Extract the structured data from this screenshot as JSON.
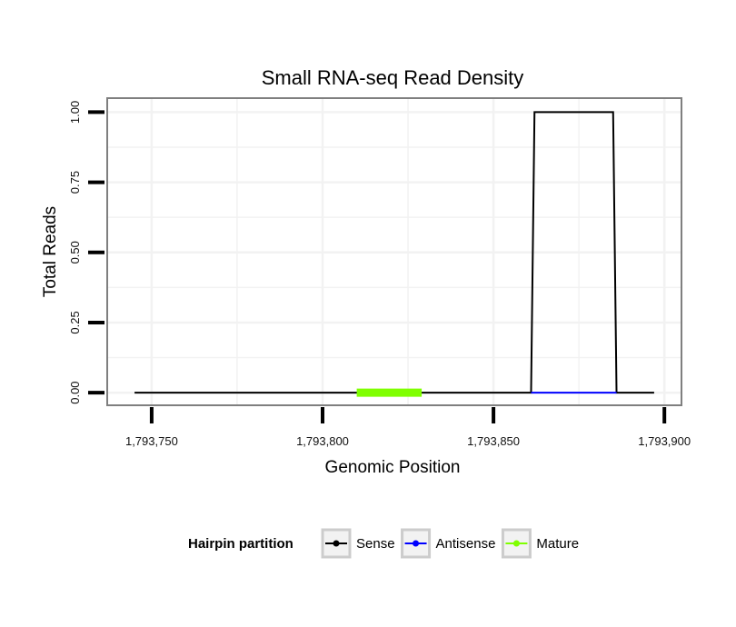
{
  "chart_data": {
    "type": "line",
    "title": "Small RNA-seq Read Density",
    "xlabel": "Genomic Position",
    "ylabel": "Total Reads",
    "xlim": [
      1793737,
      1793905
    ],
    "ylim": [
      -0.045,
      1.05
    ],
    "x_ticks": [
      1793750,
      1793800,
      1793850,
      1793900
    ],
    "x_tick_labels": [
      "1,793,750",
      "1,793,800",
      "1,793,850",
      "1,793,900"
    ],
    "y_ticks": [
      0,
      0.25,
      0.5,
      0.75,
      1.0
    ],
    "y_tick_labels": [
      "0.00",
      "0.25",
      "0.50",
      "0.75",
      "1.00"
    ],
    "grid": true,
    "legend": {
      "title": "Hairpin partition",
      "position": "bottom",
      "entries": [
        {
          "name": "Sense",
          "color": "#000000"
        },
        {
          "name": "Antisense",
          "color": "#0000ff"
        },
        {
          "name": "Mature",
          "color": "#7fff00"
        }
      ]
    },
    "series": [
      {
        "name": "Sense",
        "color": "#000000",
        "x": [
          1793745,
          1793861,
          1793862,
          1793885,
          1793886,
          1793897
        ],
        "y": [
          0,
          0,
          1,
          1,
          0,
          0
        ]
      },
      {
        "name": "Antisense",
        "color": "#0000ff",
        "x": [
          1793861,
          1793886
        ],
        "y": [
          0,
          0
        ]
      },
      {
        "name": "Mature",
        "color": "#7fff00",
        "x": [
          1793810,
          1793829
        ],
        "y": [
          0,
          0
        ]
      }
    ]
  }
}
